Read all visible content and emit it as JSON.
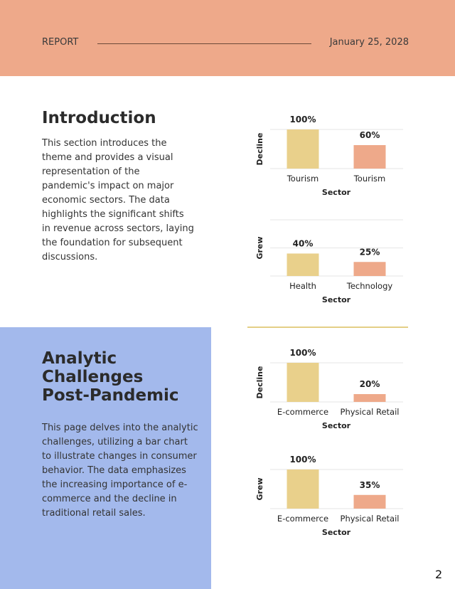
{
  "header": {
    "label": "REPORT",
    "date": "January 25, 2028"
  },
  "sections": [
    {
      "title": "Introduction",
      "body": "This section introduces the theme and provides a visual representation of the pandemic's impact on major economic sectors. The data highlights the significant shifts in revenue across sectors, laying the foundation for subsequent discussions."
    },
    {
      "title": "Analytic Challenges Post-Pandemic",
      "body": "This page delves into the analytic challenges, utilizing a bar chart to illustrate changes in consumer behavior. The data emphasizes the increasing importance of e-commerce and the decline in traditional retail sales."
    }
  ],
  "page_number": "2",
  "chart_data": [
    {
      "type": "bar",
      "y_label": "Decline",
      "x_label": "Sector",
      "categories": [
        "Tourism",
        "Tourism"
      ],
      "values": [
        100,
        60
      ],
      "value_labels": [
        "100%",
        "60%"
      ],
      "colors": [
        "#e9d08b",
        "#eea98a"
      ],
      "ylim": [
        0,
        100
      ],
      "yticks": [
        0,
        100
      ],
      "grid": true
    },
    {
      "type": "bar",
      "y_label": "Grew",
      "x_label": "Sector",
      "categories": [
        "Health",
        "Technology"
      ],
      "values": [
        40,
        25
      ],
      "value_labels": [
        "40%",
        "25%"
      ],
      "colors": [
        "#e9d08b",
        "#eea98a"
      ],
      "ylim": [
        0,
        100
      ],
      "yticks": [
        0,
        50,
        100
      ],
      "grid": true
    },
    {
      "type": "bar",
      "y_label": "Decline",
      "x_label": "Sector",
      "categories": [
        "E-commerce",
        "Physical Retail"
      ],
      "values": [
        100,
        20
      ],
      "value_labels": [
        "100%",
        "20%"
      ],
      "colors": [
        "#e9d08b",
        "#eea98a"
      ],
      "ylim": [
        0,
        100
      ],
      "yticks": [
        0,
        100
      ],
      "grid": true
    },
    {
      "type": "bar",
      "y_label": "Grew",
      "x_label": "Sector",
      "categories": [
        "E-commerce",
        "Physical Retail"
      ],
      "values": [
        100,
        35
      ],
      "value_labels": [
        "100%",
        "35%"
      ],
      "colors": [
        "#e9d08b",
        "#eea98a"
      ],
      "ylim": [
        0,
        100
      ],
      "yticks": [
        0,
        100
      ],
      "grid": true
    }
  ]
}
